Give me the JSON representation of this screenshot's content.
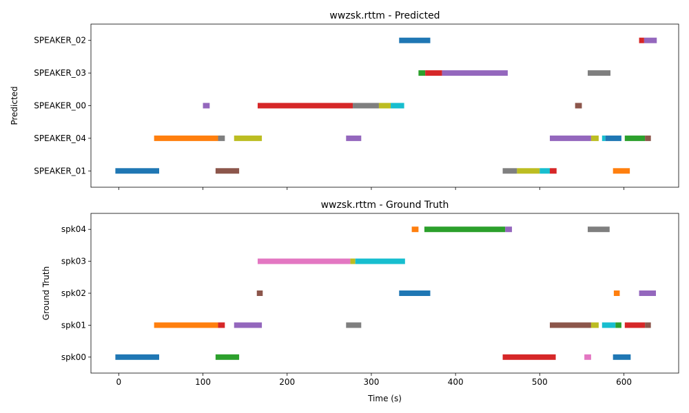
{
  "figure": {
    "xlabel": "Time (s)"
  },
  "chart_data": [
    {
      "type": "timeline",
      "title": "wwzsk.rttm - Predicted",
      "ylabel": "Predicted",
      "xlabel": "",
      "xlim": [
        -33,
        665
      ],
      "xticks": [
        0,
        100,
        200,
        300,
        400,
        500,
        600
      ],
      "show_xtick_labels": false,
      "grid": false,
      "rows": [
        "SPEAKER_01",
        "SPEAKER_04",
        "SPEAKER_00",
        "SPEAKER_03",
        "SPEAKER_02"
      ],
      "segments": [
        {
          "row": "SPEAKER_02",
          "start": 333,
          "end": 370,
          "color": "#1f77b4"
        },
        {
          "row": "SPEAKER_02",
          "start": 618,
          "end": 624,
          "color": "#d62728"
        },
        {
          "row": "SPEAKER_02",
          "start": 624,
          "end": 639,
          "color": "#9467bd"
        },
        {
          "row": "SPEAKER_03",
          "start": 356,
          "end": 364,
          "color": "#2ca02c"
        },
        {
          "row": "SPEAKER_03",
          "start": 364,
          "end": 384,
          "color": "#d62728"
        },
        {
          "row": "SPEAKER_03",
          "start": 384,
          "end": 462,
          "color": "#9467bd"
        },
        {
          "row": "SPEAKER_03",
          "start": 557,
          "end": 584,
          "color": "#7f7f7f"
        },
        {
          "row": "SPEAKER_00",
          "start": 100,
          "end": 108,
          "color": "#9467bd"
        },
        {
          "row": "SPEAKER_00",
          "start": 165,
          "end": 278,
          "color": "#d62728"
        },
        {
          "row": "SPEAKER_00",
          "start": 278,
          "end": 309,
          "color": "#7f7f7f"
        },
        {
          "row": "SPEAKER_00",
          "start": 309,
          "end": 323,
          "color": "#bcbd22"
        },
        {
          "row": "SPEAKER_00",
          "start": 323,
          "end": 339,
          "color": "#17becf"
        },
        {
          "row": "SPEAKER_00",
          "start": 542,
          "end": 550,
          "color": "#8c564b"
        },
        {
          "row": "SPEAKER_04",
          "start": 42,
          "end": 118,
          "color": "#ff7f0e"
        },
        {
          "row": "SPEAKER_04",
          "start": 118,
          "end": 126,
          "color": "#7f7f7f"
        },
        {
          "row": "SPEAKER_04",
          "start": 137,
          "end": 170,
          "color": "#bcbd22"
        },
        {
          "row": "SPEAKER_04",
          "start": 270,
          "end": 288,
          "color": "#9467bd"
        },
        {
          "row": "SPEAKER_04",
          "start": 512,
          "end": 561,
          "color": "#9467bd"
        },
        {
          "row": "SPEAKER_04",
          "start": 561,
          "end": 570,
          "color": "#bcbd22"
        },
        {
          "row": "SPEAKER_04",
          "start": 574,
          "end": 578,
          "color": "#17becf"
        },
        {
          "row": "SPEAKER_04",
          "start": 578,
          "end": 597,
          "color": "#1f77b4"
        },
        {
          "row": "SPEAKER_04",
          "start": 601,
          "end": 625,
          "color": "#2ca02c"
        },
        {
          "row": "SPEAKER_04",
          "start": 625,
          "end": 632,
          "color": "#8c564b"
        },
        {
          "row": "SPEAKER_01",
          "start": -4,
          "end": 48,
          "color": "#1f77b4"
        },
        {
          "row": "SPEAKER_01",
          "start": 115,
          "end": 143,
          "color": "#8c564b"
        },
        {
          "row": "SPEAKER_01",
          "start": 456,
          "end": 473,
          "color": "#7f7f7f"
        },
        {
          "row": "SPEAKER_01",
          "start": 473,
          "end": 500,
          "color": "#bcbd22"
        },
        {
          "row": "SPEAKER_01",
          "start": 500,
          "end": 512,
          "color": "#17becf"
        },
        {
          "row": "SPEAKER_01",
          "start": 512,
          "end": 520,
          "color": "#d62728"
        },
        {
          "row": "SPEAKER_01",
          "start": 587,
          "end": 607,
          "color": "#ff7f0e"
        }
      ]
    },
    {
      "type": "timeline",
      "title": "wwzsk.rttm - Ground Truth",
      "ylabel": "Ground Truth",
      "xlabel": "Time (s)",
      "xlim": [
        -33,
        665
      ],
      "xticks": [
        0,
        100,
        200,
        300,
        400,
        500,
        600
      ],
      "show_xtick_labels": true,
      "grid": false,
      "rows": [
        "spk00",
        "spk01",
        "spk02",
        "spk03",
        "spk04"
      ],
      "segments": [
        {
          "row": "spk04",
          "start": 348,
          "end": 356,
          "color": "#ff7f0e"
        },
        {
          "row": "spk04",
          "start": 363,
          "end": 459,
          "color": "#2ca02c"
        },
        {
          "row": "spk04",
          "start": 459,
          "end": 467,
          "color": "#9467bd"
        },
        {
          "row": "spk04",
          "start": 557,
          "end": 583,
          "color": "#7f7f7f"
        },
        {
          "row": "spk03",
          "start": 165,
          "end": 275,
          "color": "#e377c2"
        },
        {
          "row": "spk03",
          "start": 275,
          "end": 281,
          "color": "#bcbd22"
        },
        {
          "row": "spk03",
          "start": 281,
          "end": 340,
          "color": "#17becf"
        },
        {
          "row": "spk02",
          "start": 164,
          "end": 171,
          "color": "#8c564b"
        },
        {
          "row": "spk02",
          "start": 333,
          "end": 370,
          "color": "#1f77b4"
        },
        {
          "row": "spk02",
          "start": 588,
          "end": 595,
          "color": "#ff7f0e"
        },
        {
          "row": "spk02",
          "start": 618,
          "end": 638,
          "color": "#9467bd"
        },
        {
          "row": "spk01",
          "start": 42,
          "end": 118,
          "color": "#ff7f0e"
        },
        {
          "row": "spk01",
          "start": 118,
          "end": 126,
          "color": "#d62728"
        },
        {
          "row": "spk01",
          "start": 137,
          "end": 170,
          "color": "#9467bd"
        },
        {
          "row": "spk01",
          "start": 270,
          "end": 288,
          "color": "#7f7f7f"
        },
        {
          "row": "spk01",
          "start": 512,
          "end": 561,
          "color": "#8c564b"
        },
        {
          "row": "spk01",
          "start": 561,
          "end": 570,
          "color": "#bcbd22"
        },
        {
          "row": "spk01",
          "start": 574,
          "end": 590,
          "color": "#17becf"
        },
        {
          "row": "spk01",
          "start": 590,
          "end": 597,
          "color": "#2ca02c"
        },
        {
          "row": "spk01",
          "start": 601,
          "end": 625,
          "color": "#d62728"
        },
        {
          "row": "spk01",
          "start": 625,
          "end": 632,
          "color": "#8c564b"
        },
        {
          "row": "spk00",
          "start": -4,
          "end": 48,
          "color": "#1f77b4"
        },
        {
          "row": "spk00",
          "start": 115,
          "end": 143,
          "color": "#2ca02c"
        },
        {
          "row": "spk00",
          "start": 456,
          "end": 519,
          "color": "#d62728"
        },
        {
          "row": "spk00",
          "start": 553,
          "end": 561,
          "color": "#e377c2"
        },
        {
          "row": "spk00",
          "start": 587,
          "end": 608,
          "color": "#1f77b4"
        }
      ]
    }
  ]
}
